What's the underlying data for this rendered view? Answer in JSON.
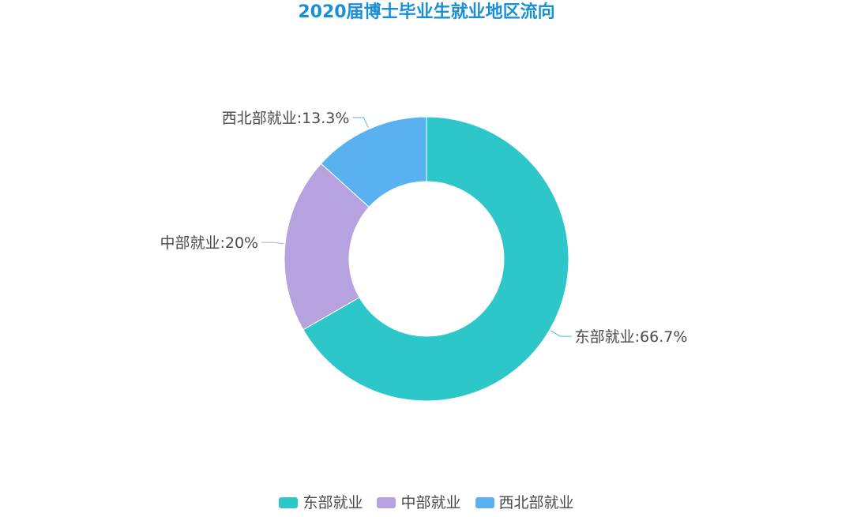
{
  "chart_data": {
    "type": "pie",
    "variant": "donut",
    "title": "2020届博士毕业生就业地区流向",
    "title_color": "#1a8fd6",
    "label_separator": ":",
    "slices": [
      {
        "name": "东部就业",
        "value": 66.7,
        "label_value": "66.7%",
        "color": "#2ec7c9"
      },
      {
        "name": "中部就业",
        "value": 20,
        "label_value": "20%",
        "color": "#b6a2de"
      },
      {
        "name": "西北部就业",
        "value": 13.3,
        "label_value": "13.3%",
        "color": "#5ab1ef"
      }
    ],
    "legend": {
      "position": "bottom-center",
      "items": [
        "东部就业",
        "中部就业",
        "西北部就业"
      ]
    }
  }
}
